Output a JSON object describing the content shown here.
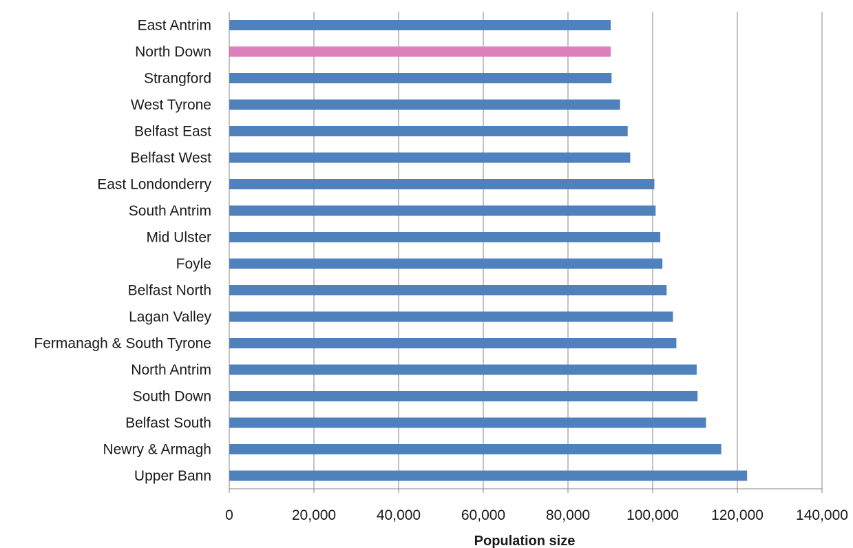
{
  "chart_data": {
    "type": "bar",
    "orientation": "horizontal",
    "title": "",
    "xlabel": "Population size",
    "ylabel": "",
    "xlim": [
      0,
      140000
    ],
    "x_ticks": [
      0,
      20000,
      40000,
      60000,
      80000,
      100000,
      120000,
      140000
    ],
    "x_tick_labels": [
      "0",
      "20,000",
      "40,000",
      "60,000",
      "80,000",
      "100,000",
      "120,000",
      "140,000"
    ],
    "grid": "vertical major gridlines",
    "legend": "none",
    "categories": [
      "East Antrim",
      "North Down",
      "Strangford",
      "West Tyrone",
      "Belfast East",
      "Belfast West",
      "East Londonderry",
      "South Antrim",
      "Mid Ulster",
      "Foyle",
      "Belfast North",
      "Lagan Valley",
      "Fermanagh & South Tyrone",
      "North Antrim",
      "South Down",
      "Belfast South",
      "Newry & Armagh",
      "Upper Bann"
    ],
    "values": [
      90100,
      90100,
      90300,
      92300,
      94100,
      94700,
      100400,
      100700,
      101800,
      102300,
      103300,
      104800,
      105600,
      110400,
      110600,
      112600,
      116200,
      122300
    ],
    "highlight_category": "North Down",
    "colors": {
      "bar": "#4f81bd",
      "highlight": "#de7fbe",
      "grid": "#868686",
      "axis": "#868686"
    }
  }
}
